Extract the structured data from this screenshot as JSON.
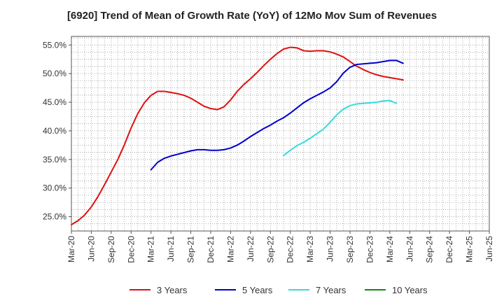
{
  "chart_data": {
    "type": "line",
    "title": "[6920]  Trend of Mean of Growth Rate (YoY) of 12Mo Mov Sum of Revenues",
    "xlabel": "",
    "ylabel": "",
    "ylim": [
      22.5,
      56.5
    ],
    "y_ticks": [
      25.0,
      30.0,
      35.0,
      40.0,
      45.0,
      50.0,
      55.0
    ],
    "y_tick_labels": [
      "25.0%",
      "30.0%",
      "35.0%",
      "40.0%",
      "45.0%",
      "50.0%",
      "55.0%"
    ],
    "x_tick_labels": [
      "Mar-20",
      "Jun-20",
      "Sep-20",
      "Dec-20",
      "Mar-21",
      "Jun-21",
      "Sep-21",
      "Dec-21",
      "Mar-22",
      "Jun-22",
      "Sep-22",
      "Dec-22",
      "Mar-23",
      "Jun-23",
      "Sep-23",
      "Dec-23",
      "Mar-24",
      "Jun-24",
      "Sep-24",
      "Dec-24",
      "Mar-25",
      "Jun-25"
    ],
    "grid": true,
    "legend_position": "bottom",
    "series": [
      {
        "name": "3 Years",
        "color": "#dd1111",
        "start_index": 0,
        "values": [
          23.6,
          24.3,
          25.3,
          26.7,
          28.5,
          30.6,
          32.8,
          35.0,
          37.6,
          40.5,
          43.0,
          44.9,
          46.2,
          46.9,
          46.9,
          46.7,
          46.5,
          46.2,
          45.7,
          45.0,
          44.3,
          43.9,
          43.7,
          44.2,
          45.4,
          46.9,
          48.1,
          49.1,
          50.2,
          51.4,
          52.5,
          53.5,
          54.3,
          54.6,
          54.5,
          54.0,
          53.9,
          54.0,
          54.0,
          53.8,
          53.4,
          52.9,
          52.1,
          51.3,
          50.7,
          50.2,
          49.8,
          49.5,
          49.3,
          49.1,
          48.9
        ]
      },
      {
        "name": "5 Years",
        "color": "#0000cc",
        "start_index": 12,
        "values": [
          33.2,
          34.5,
          35.2,
          35.6,
          35.9,
          36.2,
          36.5,
          36.7,
          36.7,
          36.6,
          36.6,
          36.7,
          37.0,
          37.5,
          38.2,
          39.0,
          39.7,
          40.4,
          41.0,
          41.7,
          42.3,
          43.1,
          44.0,
          44.9,
          45.6,
          46.2,
          46.8,
          47.5,
          48.6,
          50.1,
          51.1,
          51.6,
          51.7,
          51.8,
          51.9,
          52.1,
          52.3,
          52.3,
          51.8
        ]
      },
      {
        "name": "7 Years",
        "color": "#33dddd",
        "start_index": 32,
        "values": [
          35.7,
          36.6,
          37.4,
          38.0,
          38.7,
          39.5,
          40.3,
          41.5,
          42.8,
          43.8,
          44.4,
          44.7,
          44.8,
          44.9,
          45.0,
          45.2,
          45.3,
          44.8
        ]
      },
      {
        "name": "10 Years",
        "color": "#118811",
        "start_index": 0,
        "values": []
      }
    ]
  }
}
